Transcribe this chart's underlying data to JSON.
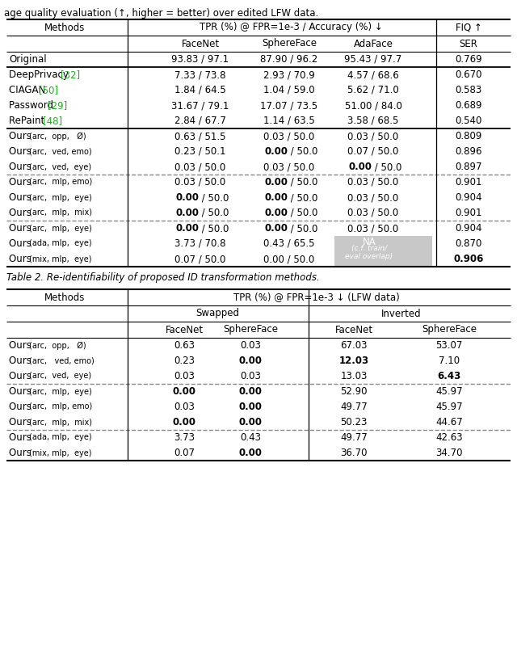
{
  "title": "age quality evaluation (↑, higher = better) over edited LFW data.",
  "table2_caption": "Table 2. Re-identifiability of proposed ID transformation methods.",
  "t1": {
    "rows": [
      {
        "method": "Original",
        "fn": "93.83 / 97.1",
        "sf": "87.90 / 96.2",
        "af": "95.43 / 97.7",
        "fiq": "0.769",
        "bold_fn": false,
        "bold_sf": false,
        "bold_af": false,
        "bold_fiq": false,
        "group": 0,
        "na": false
      },
      {
        "method": "DeepPrivacy [32]",
        "fn": "7.33 / 73.8",
        "sf": "2.93 / 70.9",
        "af": "4.57 / 68.6",
        "fiq": "0.670",
        "bold_fn": false,
        "bold_sf": false,
        "bold_af": false,
        "bold_fiq": false,
        "group": 1,
        "na": false
      },
      {
        "method": "CIAGAN [50]",
        "fn": "1.84 / 64.5",
        "sf": "1.04 / 59.0",
        "af": "5.62 / 71.0",
        "fiq": "0.583",
        "bold_fn": false,
        "bold_sf": false,
        "bold_af": false,
        "bold_fiq": false,
        "group": 1,
        "na": false
      },
      {
        "method": "Password [29]",
        "fn": "31.67 / 79.1",
        "sf": "17.07 / 73.5",
        "af": "51.00 / 84.0",
        "fiq": "0.689",
        "bold_fn": false,
        "bold_sf": false,
        "bold_af": false,
        "bold_fiq": false,
        "group": 1,
        "na": false
      },
      {
        "method": "RePaint [48]",
        "fn": "2.84 / 67.7",
        "sf": "1.14 / 63.5",
        "af": "3.58 / 68.5",
        "fiq": "0.540",
        "bold_fn": false,
        "bold_sf": false,
        "bold_af": false,
        "bold_fiq": false,
        "group": 1,
        "na": false
      },
      {
        "method": "Ours (arc,  opp,   Ø)",
        "fn": "0.63 / 51.5",
        "sf": "0.03 / 50.0",
        "af": "0.03 / 50.0",
        "fiq": "0.809",
        "bold_fn": false,
        "bold_sf": false,
        "bold_af": false,
        "bold_fiq": false,
        "group": 2,
        "na": false
      },
      {
        "method": "Ours (arc,  ved, emo)",
        "fn": "0.23 / 50.1",
        "sf": "0.00 / 50.0",
        "af": "0.07 / 50.0",
        "fiq": "0.896",
        "bold_fn": false,
        "bold_sf": true,
        "bold_af": false,
        "bold_fiq": false,
        "group": 2,
        "na": false
      },
      {
        "method": "Ours (arc,  ved,  eye)",
        "fn": "0.03 / 50.0",
        "sf": "0.03 / 50.0",
        "af": "0.00 / 50.0",
        "fiq": "0.897",
        "bold_fn": false,
        "bold_sf": false,
        "bold_af": true,
        "bold_fiq": false,
        "group": 2,
        "na": false
      },
      {
        "method": "Ours (arc,  mlp, emo)",
        "fn": "0.03 / 50.0",
        "sf": "0.00 / 50.0",
        "af": "0.03 / 50.0",
        "fiq": "0.901",
        "bold_fn": false,
        "bold_sf": true,
        "bold_af": false,
        "bold_fiq": false,
        "group": 3,
        "na": false
      },
      {
        "method": "Ours (arc,  mlp,  eye)",
        "fn": "0.00 / 50.0",
        "sf": "0.00 / 50.0",
        "af": "0.03 / 50.0",
        "fiq": "0.904",
        "bold_fn": true,
        "bold_sf": true,
        "bold_af": false,
        "bold_fiq": false,
        "group": 3,
        "na": false
      },
      {
        "method": "Ours (arc,  mlp,  mix)",
        "fn": "0.00 / 50.0",
        "sf": "0.00 / 50.0",
        "af": "0.03 / 50.0",
        "fiq": "0.901",
        "bold_fn": true,
        "bold_sf": true,
        "bold_af": false,
        "bold_fiq": false,
        "group": 3,
        "na": false
      },
      {
        "method": "Ours (arc,  mlp,  eye)",
        "fn": "0.00 / 50.0",
        "sf": "0.00 / 50.0",
        "af": "0.03 / 50.0",
        "fiq": "0.904",
        "bold_fn": true,
        "bold_sf": true,
        "bold_af": false,
        "bold_fiq": false,
        "group": 4,
        "na": false
      },
      {
        "method": "Ours (ada, mlp,  eye)",
        "fn": "3.73 / 70.8",
        "sf": "0.43 / 65.5",
        "af": "NA (c.f. train/\neval overlap)",
        "fiq": "0.870",
        "bold_fn": false,
        "bold_sf": false,
        "bold_af": false,
        "bold_fiq": false,
        "group": 4,
        "na": true
      },
      {
        "method": "Ours (mix, mlp,  eye)",
        "fn": "0.07 / 50.0",
        "sf": "0.00 / 50.0",
        "af": "NA (c.f. train/\neval overlap)",
        "fiq": "0.906",
        "bold_fn": false,
        "bold_sf": false,
        "bold_af": false,
        "bold_fiq": true,
        "group": 4,
        "na": true
      }
    ]
  },
  "t2": {
    "rows": [
      {
        "method": "Ours (arc,  opp,   Ø)",
        "sw_fn": "0.63",
        "sw_sf": "0.03",
        "inv_fn": "67.03",
        "inv_sf": "53.07",
        "bold_sw_fn": false,
        "bold_sw_sf": false,
        "bold_inv_fn": false,
        "bold_inv_sf": false,
        "group": 0
      },
      {
        "method": "Ours (arc,   ved, emo)",
        "sw_fn": "0.23",
        "sw_sf": "0.00",
        "inv_fn": "12.03",
        "inv_sf": "7.10",
        "bold_sw_fn": false,
        "bold_sw_sf": true,
        "bold_inv_fn": true,
        "bold_inv_sf": false,
        "group": 0
      },
      {
        "method": "Ours (arc,  ved,  eye)",
        "sw_fn": "0.03",
        "sw_sf": "0.03",
        "inv_fn": "13.03",
        "inv_sf": "6.43",
        "bold_sw_fn": false,
        "bold_sw_sf": false,
        "bold_inv_fn": false,
        "bold_inv_sf": true,
        "group": 0
      },
      {
        "method": "Ours (arc,  mlp,  eye)",
        "sw_fn": "0.00",
        "sw_sf": "0.00",
        "inv_fn": "52.90",
        "inv_sf": "45.97",
        "bold_sw_fn": true,
        "bold_sw_sf": true,
        "bold_inv_fn": false,
        "bold_inv_sf": false,
        "group": 1
      },
      {
        "method": "Ours (arc,  mlp, emo)",
        "sw_fn": "0.03",
        "sw_sf": "0.00",
        "inv_fn": "49.77",
        "inv_sf": "45.97",
        "bold_sw_fn": false,
        "bold_sw_sf": true,
        "bold_inv_fn": false,
        "bold_inv_sf": false,
        "group": 1
      },
      {
        "method": "Ours (arc,  mlp,  mix)",
        "sw_fn": "0.00",
        "sw_sf": "0.00",
        "inv_fn": "50.23",
        "inv_sf": "44.67",
        "bold_sw_fn": true,
        "bold_sw_sf": true,
        "bold_inv_fn": false,
        "bold_inv_sf": false,
        "group": 1
      },
      {
        "method": "Ours (ada, mlp,  eye)",
        "sw_fn": "3.73",
        "sw_sf": "0.43",
        "inv_fn": "49.77",
        "inv_sf": "42.63",
        "bold_sw_fn": false,
        "bold_sw_sf": false,
        "bold_inv_fn": false,
        "bold_inv_sf": false,
        "group": 2
      },
      {
        "method": "Ours (mix, mlp,  eye)",
        "sw_fn": "0.07",
        "sw_sf": "0.00",
        "inv_fn": "36.70",
        "inv_sf": "34.70",
        "bold_sw_fn": false,
        "bold_sw_sf": true,
        "bold_inv_fn": false,
        "bold_inv_sf": false,
        "group": 2
      }
    ]
  }
}
